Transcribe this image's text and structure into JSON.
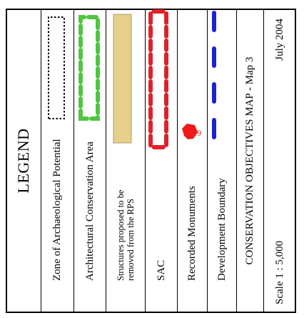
{
  "legend": {
    "title": "LEGEND",
    "items": [
      {
        "label": "Zone of Archaeological Potential",
        "symbol": "dotted-outline-box",
        "color": "#000000"
      },
      {
        "label": "Architectural Conservation Area",
        "symbol": "dashed-green-box",
        "color": "#4fc63f"
      },
      {
        "label": "Structures proposed to be removed from the RPS",
        "symbol": "filled-tan-box",
        "color": "#e8cf8a"
      },
      {
        "label": "SAC",
        "symbol": "dashed-red-box",
        "color": "#e0202a"
      },
      {
        "label": "Recorded Monuments",
        "symbol": "red-polygon",
        "color": "#f01818",
        "badge": "19"
      },
      {
        "label": "Development Boundary",
        "symbol": "dashed-blue-line",
        "color": "#1d22d6"
      }
    ]
  },
  "map_title": "CONSERVATION OBJECTIVES MAP - Map 3",
  "scale_label": "Scale 1 : 5,000",
  "date_label": "July 2004"
}
